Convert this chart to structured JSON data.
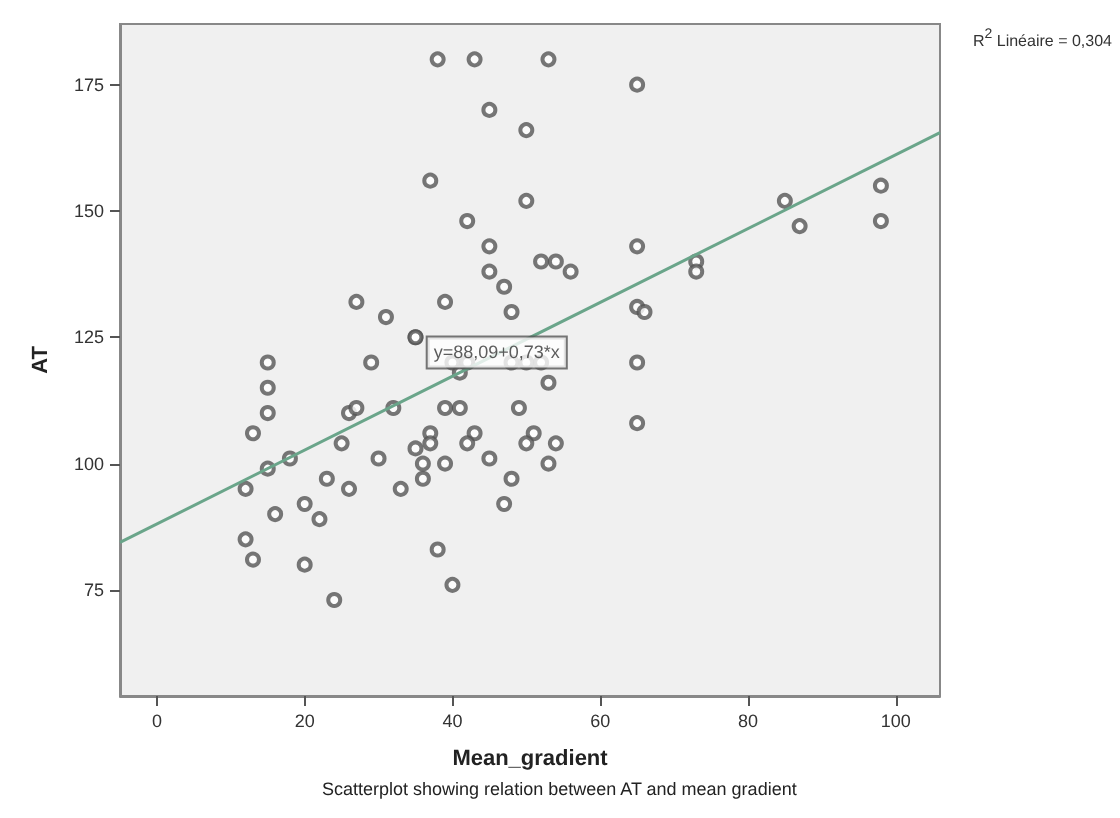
{
  "chart_data": {
    "type": "scatter",
    "xlabel": "Mean_gradient",
    "ylabel": "AT",
    "xlim": [
      -5,
      106
    ],
    "ylim": [
      54,
      187
    ],
    "xticks": [
      0,
      20,
      40,
      60,
      80,
      100
    ],
    "yticks": [
      75,
      100,
      125,
      150,
      175
    ],
    "grid": false,
    "marker": "circle",
    "series": [
      {
        "color": "#555555",
        "x": [
          27,
          31,
          35,
          15,
          29,
          15,
          38,
          43,
          53,
          65,
          45,
          50,
          37,
          50,
          42,
          45,
          65,
          52,
          54,
          56,
          45,
          73,
          73,
          47,
          39,
          48,
          65,
          66,
          35,
          40,
          42,
          48,
          50,
          52,
          65,
          41,
          53,
          15,
          13,
          26,
          27,
          32,
          25,
          35,
          18,
          30,
          15,
          12,
          23,
          26,
          33,
          20,
          16,
          22,
          12,
          13,
          20,
          24,
          39,
          41,
          49,
          65,
          37,
          43,
          51,
          37,
          42,
          50,
          54,
          36,
          39,
          45,
          53,
          36,
          48,
          47,
          38,
          40,
          85,
          87,
          98,
          98
        ],
        "values": [
          132,
          129,
          125,
          120,
          120,
          115,
          180,
          180,
          180,
          175,
          170,
          166,
          156,
          152,
          148,
          143,
          143,
          140,
          140,
          138,
          138,
          140,
          138,
          135,
          132,
          130,
          131,
          130,
          125,
          120,
          120,
          120,
          120,
          120,
          120,
          118,
          116,
          110,
          106,
          110,
          111,
          111,
          104,
          103,
          101,
          101,
          99,
          95,
          97,
          95,
          95,
          92,
          90,
          89,
          85,
          81,
          80,
          73,
          111,
          111,
          111,
          108,
          106,
          106,
          106,
          104,
          104,
          104,
          104,
          100,
          100,
          101,
          100,
          97,
          97,
          92,
          83,
          76,
          152,
          147,
          155,
          148
        ]
      },
      {
        "type": "line",
        "color": "#6aa58a",
        "marker": "none",
        "x": [
          -5,
          106
        ],
        "values": [
          84.4,
          165.5
        ]
      }
    ],
    "annotations": [
      {
        "text": "y=88,09+0,73*x",
        "x": 46,
        "y": 122
      },
      "R$^{2}$ Linéaire = 0,304",
      "Scatterplot showing relation between AT and mean gradient"
    ]
  }
}
